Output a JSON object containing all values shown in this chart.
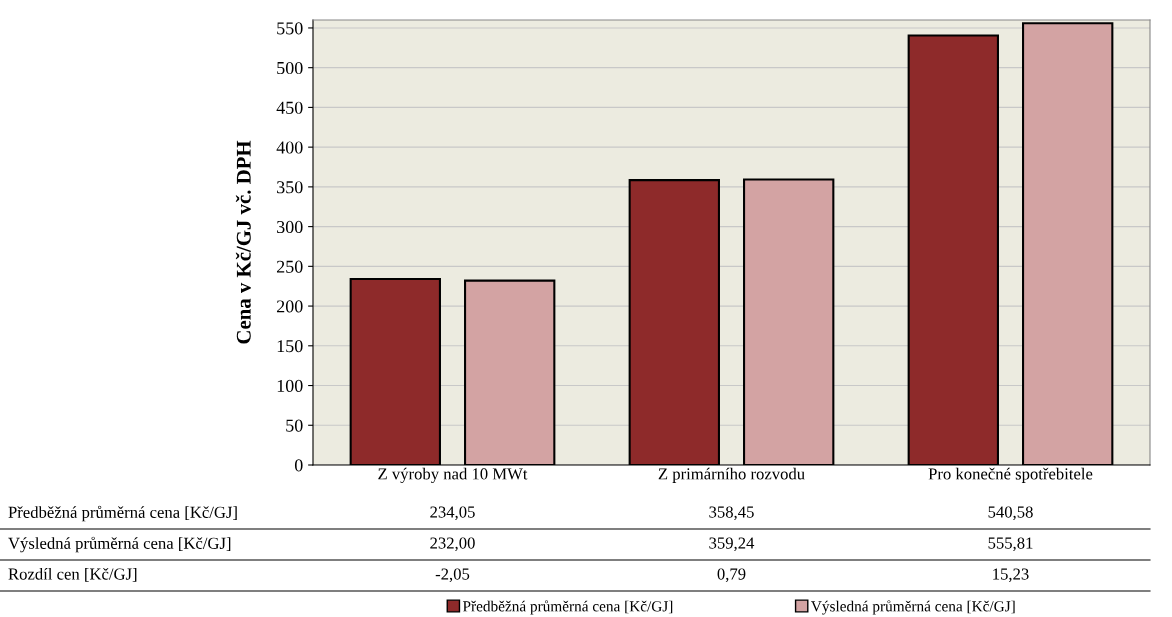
{
  "chart_data": {
    "type": "bar",
    "ylabel": "Cena v Kč/GJ vč. DPH",
    "categories": [
      "Z výroby nad 10 MWt",
      "Z primárního rozvodu",
      "Pro konečné spotřebitele"
    ],
    "series": [
      {
        "name": "Předběžná průměrná cena [Kč/GJ]",
        "color": "#8e2a2a",
        "values": [
          234.05,
          358.45,
          540.58
        ],
        "value_labels": [
          "234,05",
          "358,45",
          "540,58"
        ]
      },
      {
        "name": "Výsledná průměrná cena [Kč/GJ]",
        "color": "#d3a3a3",
        "values": [
          232.0,
          359.24,
          555.81
        ],
        "value_labels": [
          "232,00",
          "359,24",
          "555,81"
        ]
      }
    ],
    "annotations": [
      "Rozdíl cen [Kč/GJ]",
      "-2,05",
      "0,79",
      "15,23"
    ],
    "ylim": [
      0,
      560
    ],
    "yticks": [
      0,
      50,
      100,
      150,
      200,
      250,
      300,
      350,
      400,
      450,
      500,
      550
    ],
    "grid": "y",
    "legend": "bottom"
  }
}
